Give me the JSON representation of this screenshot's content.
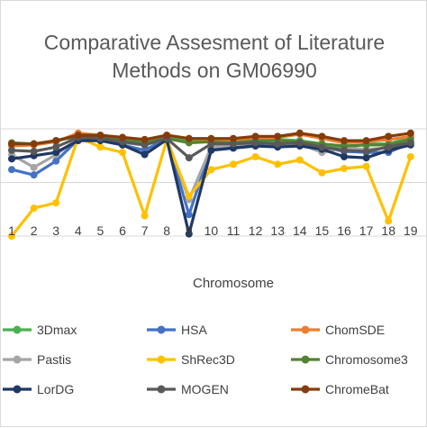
{
  "chart_data": {
    "type": "line",
    "title_lines": [
      "Comparative Assesment of Literature",
      "Methods on GM06990"
    ],
    "xlabel": "Chromosome",
    "ylabel": "",
    "categories": [
      "1",
      "2",
      "3",
      "4",
      "5",
      "6",
      "7",
      "8",
      "9",
      "10",
      "11",
      "12",
      "13",
      "14",
      "15",
      "16",
      "17",
      "18",
      "19"
    ],
    "ylim": [
      0,
      1
    ],
    "grid": true,
    "legend_position": "bottom",
    "series": [
      {
        "name": "3Dmax",
        "color": "#4CAF50",
        "values": [
          0.85,
          0.86,
          0.88,
          0.95,
          0.92,
          0.91,
          0.88,
          0.93,
          0.89,
          0.9,
          0.88,
          0.89,
          0.9,
          0.89,
          0.86,
          0.82,
          0.86,
          0.86,
          0.92
        ]
      },
      {
        "name": "HSA",
        "color": "#4472C4",
        "values": [
          0.62,
          0.57,
          0.7,
          0.9,
          0.91,
          0.85,
          0.8,
          0.91,
          0.2,
          0.82,
          0.83,
          0.86,
          0.84,
          0.85,
          0.83,
          0.79,
          0.78,
          0.78,
          0.87
        ]
      },
      {
        "name": "ChomSDE",
        "color": "#ED7D31",
        "values": [
          0.84,
          0.85,
          0.88,
          0.96,
          0.94,
          0.92,
          0.9,
          0.94,
          0.91,
          0.9,
          0.89,
          0.91,
          0.92,
          0.95,
          0.91,
          0.87,
          0.88,
          0.9,
          0.93
        ]
      },
      {
        "name": "Pastis",
        "color": "#A5A5A5",
        "values": [
          0.76,
          0.64,
          0.76,
          0.91,
          0.9,
          0.87,
          0.85,
          0.91,
          0.34,
          0.83,
          0.85,
          0.87,
          0.86,
          0.86,
          0.78,
          0.82,
          0.81,
          0.82,
          0.87
        ]
      },
      {
        "name": "ShRec3D",
        "color": "#FFC000",
        "values": [
          0.0,
          0.26,
          0.31,
          0.92,
          0.83,
          0.78,
          0.19,
          0.9,
          0.37,
          0.62,
          0.67,
          0.74,
          0.67,
          0.71,
          0.59,
          0.63,
          0.65,
          0.14,
          0.74
        ]
      },
      {
        "name": "Chromosome3",
        "color": "#548235",
        "values": [
          0.87,
          0.86,
          0.89,
          0.93,
          0.92,
          0.89,
          0.87,
          0.91,
          0.87,
          0.88,
          0.87,
          0.89,
          0.89,
          0.88,
          0.86,
          0.84,
          0.85,
          0.85,
          0.9
        ]
      },
      {
        "name": "LorDG",
        "color": "#1F3864",
        "values": [
          0.72,
          0.75,
          0.78,
          0.89,
          0.89,
          0.85,
          0.76,
          0.9,
          0.02,
          0.8,
          0.82,
          0.84,
          0.83,
          0.84,
          0.81,
          0.74,
          0.73,
          0.8,
          0.85
        ]
      },
      {
        "name": "MOGEN",
        "color": "#595959",
        "values": [
          0.8,
          0.79,
          0.83,
          0.92,
          0.91,
          0.88,
          0.85,
          0.91,
          0.73,
          0.86,
          0.86,
          0.87,
          0.86,
          0.87,
          0.83,
          0.8,
          0.79,
          0.83,
          0.87
        ]
      },
      {
        "name": "ChromeBat",
        "color": "#843C0C",
        "values": [
          0.86,
          0.86,
          0.89,
          0.94,
          0.94,
          0.92,
          0.9,
          0.94,
          0.91,
          0.91,
          0.91,
          0.93,
          0.93,
          0.96,
          0.93,
          0.89,
          0.89,
          0.93,
          0.96
        ]
      }
    ]
  }
}
